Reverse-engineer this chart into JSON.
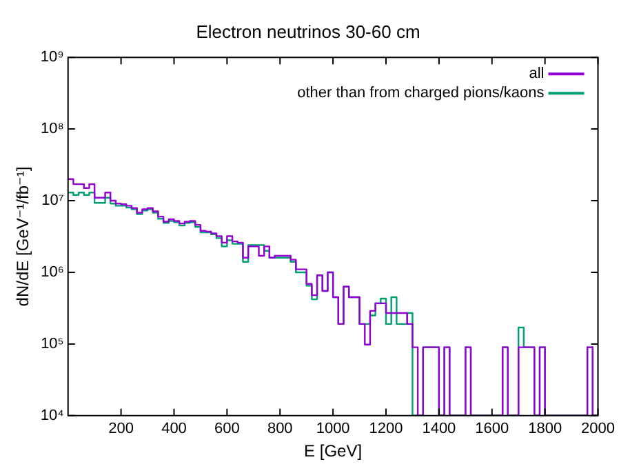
{
  "chart_data": {
    "type": "histogram",
    "title": "Electron neutrinos 30-60 cm",
    "xlabel": "E [GeV]",
    "ylabel": "dN/dE [GeV⁻¹/fb⁻¹]",
    "bins": [
      0,
      20,
      40,
      60,
      80,
      100,
      120,
      140,
      160,
      180,
      200,
      220,
      240,
      260,
      280,
      300,
      320,
      340,
      360,
      380,
      400,
      420,
      440,
      460,
      480,
      500,
      520,
      540,
      560,
      580,
      600,
      620,
      640,
      660,
      680,
      700,
      720,
      740,
      760,
      780,
      800,
      820,
      840,
      860,
      880,
      900,
      920,
      940,
      960,
      980,
      1000,
      1020,
      1040,
      1060,
      1080,
      1100,
      1120,
      1140,
      1160,
      1180,
      1200,
      1220,
      1240,
      1260,
      1280,
      1300,
      1320,
      1340,
      1360,
      1380,
      1400,
      1420,
      1440,
      1460,
      1480,
      1500,
      1520,
      1540,
      1560,
      1580,
      1600,
      1620,
      1640,
      1660,
      1680,
      1700,
      1720,
      1740,
      1760,
      1780,
      1800,
      1820,
      1840,
      1860,
      1880,
      1900,
      1920,
      1940,
      1960,
      1980,
      2000
    ],
    "series": [
      {
        "name": "all",
        "color": "#9400d3",
        "values": [
          20000000.0,
          17000000.0,
          17000000.0,
          15000000.0,
          17000000.0,
          11000000.0,
          11000000.0,
          13000000.0,
          10000000.0,
          9100000.0,
          8900000.0,
          8500000.0,
          7900000.0,
          6800000.0,
          7600000.0,
          7900000.0,
          7100000.0,
          6000000.0,
          5100000.0,
          5500000.0,
          5200000.0,
          4800000.0,
          5100000.0,
          5200000.0,
          4600000.0,
          3800000.0,
          3700000.0,
          3500000.0,
          3200000.0,
          2600000.0,
          3200000.0,
          2700000.0,
          2600000.0,
          1600000.0,
          2300000.0,
          2300000.0,
          1700000.0,
          2300000.0,
          1600000.0,
          1700000.0,
          1700000.0,
          1700000.0,
          1500000.0,
          1100000.0,
          1100000.0,
          690000.0,
          480000.0,
          910000.0,
          550000.0,
          1000000.0,
          450000.0,
          190000.0,
          630000.0,
          450000.0,
          450000.0,
          190000.0,
          98000.0,
          290000.0,
          370000.0,
          370000.0,
          270000.0,
          270000.0,
          270000.0,
          270000.0,
          190000.0,
          90000.0,
          10000.0,
          90000.0,
          90000.0,
          90000.0,
          10000.0,
          90000.0,
          10000.0,
          10000.0,
          10000.0,
          90000.0,
          10000.0,
          10000.0,
          10000.0,
          10000.0,
          10000.0,
          10000.0,
          90000.0,
          10000.0,
          10000.0,
          90000.0,
          90000.0,
          90000.0,
          10000.0,
          90000.0,
          10000.0,
          10000.0,
          10000.0,
          10000.0,
          10000.0,
          10000.0,
          10000.0,
          10000.0,
          90000.0,
          10000.0
        ]
      },
      {
        "name": "other than from charged pions/kaons",
        "color": "#009e73",
        "values": [
          13000000.0,
          12000000.0,
          13000000.0,
          12000000.0,
          13000000.0,
          9300000.0,
          9300000.0,
          11000000.0,
          9100000.0,
          8500000.0,
          8500000.0,
          8000000.0,
          7600000.0,
          6500000.0,
          7300000.0,
          7600000.0,
          6800000.0,
          5600000.0,
          4900000.0,
          5200000.0,
          5000000.0,
          4500000.0,
          4900000.0,
          5000000.0,
          4300000.0,
          3600000.0,
          3600000.0,
          3400000.0,
          3000000.0,
          2300000.0,
          2800000.0,
          2500000.0,
          2500000.0,
          1400000.0,
          2400000.0,
          2400000.0,
          2400000.0,
          2000000.0,
          1600000.0,
          1600000.0,
          1600000.0,
          1600000.0,
          1400000.0,
          1000000.0,
          1000000.0,
          650000.0,
          420000.0,
          910000.0,
          550000.0,
          1000000.0,
          450000.0,
          190000.0,
          630000.0,
          450000.0,
          450000.0,
          190000.0,
          190000.0,
          250000.0,
          370000.0,
          430000.0,
          190000.0,
          450000.0,
          190000.0,
          190000.0,
          270000.0,
          10000.0,
          10000.0,
          90000.0,
          90000.0,
          90000.0,
          10000.0,
          90000.0,
          10000.0,
          10000.0,
          10000.0,
          90000.0,
          10000.0,
          10000.0,
          10000.0,
          10000.0,
          10000.0,
          10000.0,
          90000.0,
          10000.0,
          10000.0,
          170000.0,
          90000.0,
          90000.0,
          10000.0,
          90000.0,
          10000.0,
          10000.0,
          10000.0,
          10000.0,
          10000.0,
          10000.0,
          10000.0,
          10000.0,
          90000.0,
          10000.0
        ]
      }
    ],
    "xlim": [
      0,
      2000
    ],
    "xticks": [
      200,
      400,
      600,
      800,
      1000,
      1200,
      1400,
      1600,
      1800,
      2000
    ],
    "log": "y",
    "ylim": [
      10000,
      1000000000
    ],
    "yticks": [
      {
        "value": 10000,
        "label": "10⁴"
      },
      {
        "value": 100000,
        "label": "10⁵"
      },
      {
        "value": 1000000,
        "label": "10⁶"
      },
      {
        "value": 10000000,
        "label": "10⁷"
      },
      {
        "value": 100000000,
        "label": "10⁸"
      },
      {
        "value": 1000000000,
        "label": "10⁹"
      }
    ],
    "legend": "top right",
    "grid": false
  }
}
